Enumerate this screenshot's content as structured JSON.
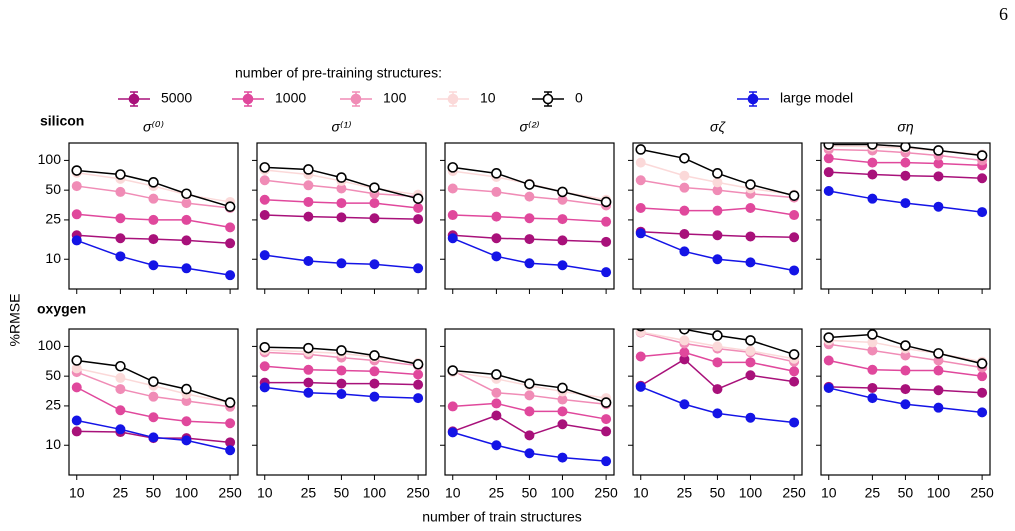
{
  "page_number": "6",
  "legend_title": "number of pre-training structures:",
  "xlabel": "number of train structures",
  "ylabel": "%RMSE",
  "chart_data": [
    {
      "type": "line",
      "row_label": "silicon",
      "title": "σ⁽⁰⁾",
      "log_x": true,
      "log_y": true,
      "xlim": [
        8.5,
        295
      ],
      "ylim": [
        5,
        150
      ],
      "xticks": [
        10,
        25,
        50,
        100,
        250
      ],
      "yticks": [
        10,
        25,
        50,
        100
      ],
      "x": [
        10,
        25,
        50,
        100,
        250
      ],
      "series": [
        {
          "name": "5000",
          "color": "#a8117a",
          "values": [
            17.5,
            16.3,
            16,
            15.5,
            14.5
          ]
        },
        {
          "name": "1000",
          "color": "#e0489c",
          "values": [
            28.5,
            26,
            25,
            25,
            21
          ]
        },
        {
          "name": "100",
          "color": "#f08cb6",
          "values": [
            55,
            48,
            41,
            37,
            33
          ]
        },
        {
          "name": "10",
          "color": "#fbd9d9",
          "values": [
            75,
            65,
            55,
            45,
            38
          ]
        },
        {
          "name": "0",
          "color": "#000000",
          "marker_face": "#ffffff",
          "values": [
            79,
            72,
            60,
            46,
            34
          ]
        },
        {
          "name": "large model",
          "color": "#1414e6",
          "values": [
            15.5,
            10.7,
            8.7,
            8.1,
            6.9
          ]
        }
      ]
    },
    {
      "type": "line",
      "title": "σ⁽¹⁾",
      "log_x": true,
      "log_y": true,
      "xlim": [
        8.5,
        295
      ],
      "ylim": [
        5,
        150
      ],
      "xticks": [
        10,
        25,
        50,
        100,
        250
      ],
      "yticks": [
        10,
        25,
        50,
        100
      ],
      "x": [
        10,
        25,
        50,
        100,
        250
      ],
      "series": [
        {
          "name": "5000",
          "color": "#a8117a",
          "values": [
            28,
            27,
            26.5,
            26,
            25.5
          ]
        },
        {
          "name": "1000",
          "color": "#e0489c",
          "values": [
            40,
            38,
            37,
            37,
            33
          ]
        },
        {
          "name": "100",
          "color": "#f08cb6",
          "values": [
            63,
            56,
            52,
            46,
            43
          ]
        },
        {
          "name": "10",
          "color": "#fbd9d9",
          "values": [
            80,
            72,
            62,
            52,
            45
          ]
        },
        {
          "name": "0",
          "color": "#000000",
          "marker_face": "#ffffff",
          "values": [
            85,
            81,
            67,
            53,
            41
          ]
        },
        {
          "name": "large model",
          "color": "#1414e6",
          "values": [
            11,
            9.6,
            9.1,
            8.9,
            8.1
          ]
        }
      ]
    },
    {
      "type": "line",
      "title": "σ⁽²⁾",
      "log_x": true,
      "log_y": true,
      "xlim": [
        8.5,
        295
      ],
      "ylim": [
        5,
        150
      ],
      "xticks": [
        10,
        25,
        50,
        100,
        250
      ],
      "yticks": [
        10,
        25,
        50,
        100
      ],
      "x": [
        10,
        25,
        50,
        100,
        250
      ],
      "series": [
        {
          "name": "5000",
          "color": "#a8117a",
          "values": [
            17.5,
            16.3,
            16,
            15.5,
            15
          ]
        },
        {
          "name": "1000",
          "color": "#e0489c",
          "values": [
            28,
            27,
            26,
            25.5,
            24
          ]
        },
        {
          "name": "100",
          "color": "#f08cb6",
          "values": [
            52,
            48,
            43,
            40,
            35
          ]
        },
        {
          "name": "10",
          "color": "#fbd9d9",
          "values": [
            78,
            68,
            58,
            48,
            40
          ]
        },
        {
          "name": "0",
          "color": "#000000",
          "marker_face": "#ffffff",
          "values": [
            85,
            74,
            57,
            48,
            38
          ]
        },
        {
          "name": "large model",
          "color": "#1414e6",
          "values": [
            16.3,
            10.7,
            9.1,
            8.7,
            7.4
          ]
        }
      ]
    },
    {
      "type": "line",
      "title": "σζ",
      "log_x": true,
      "log_y": true,
      "xlim": [
        8.5,
        295
      ],
      "ylim": [
        5,
        150
      ],
      "xticks": [
        10,
        25,
        50,
        100,
        250
      ],
      "yticks": [
        10,
        25,
        50,
        100
      ],
      "x": [
        10,
        25,
        50,
        100,
        250
      ],
      "series": [
        {
          "name": "5000",
          "color": "#a8117a",
          "values": [
            19,
            18,
            17.5,
            17,
            16.7
          ]
        },
        {
          "name": "1000",
          "color": "#e0489c",
          "values": [
            33,
            31,
            31,
            33,
            28
          ]
        },
        {
          "name": "100",
          "color": "#f08cb6",
          "values": [
            63,
            53,
            50,
            46,
            42
          ]
        },
        {
          "name": "10",
          "color": "#fbd9d9",
          "values": [
            95,
            70,
            60,
            52,
            45
          ]
        },
        {
          "name": "0",
          "color": "#000000",
          "marker_face": "#ffffff",
          "values": [
            129,
            105,
            74,
            57,
            44
          ]
        },
        {
          "name": "large model",
          "color": "#1414e6",
          "values": [
            18.3,
            12,
            10,
            9.3,
            7.7
          ]
        }
      ]
    },
    {
      "type": "line",
      "title": "ση",
      "log_x": true,
      "log_y": true,
      "xlim": [
        8.5,
        295
      ],
      "ylim": [
        5,
        150
      ],
      "xticks": [
        10,
        25,
        50,
        100,
        250
      ],
      "yticks": [
        10,
        25,
        50,
        100
      ],
      "x": [
        10,
        25,
        50,
        100,
        250
      ],
      "series": [
        {
          "name": "5000",
          "color": "#a8117a",
          "values": [
            76,
            72,
            70,
            69,
            66
          ]
        },
        {
          "name": "1000",
          "color": "#e0489c",
          "values": [
            105,
            95,
            95,
            93,
            89
          ]
        },
        {
          "name": "100",
          "color": "#f08cb6",
          "values": [
            129,
            126,
            120,
            112,
            100
          ]
        },
        {
          "name": "10",
          "color": "#fbd9d9",
          "values": [
            140,
            138,
            134,
            125,
            115
          ]
        },
        {
          "name": "0",
          "color": "#000000",
          "marker_face": "#ffffff",
          "values": [
            145,
            145,
            138,
            126,
            112
          ]
        },
        {
          "name": "large model",
          "color": "#1414e6",
          "values": [
            49,
            41,
            37,
            34,
            30
          ]
        }
      ]
    },
    {
      "type": "line",
      "row_label": "oxygen",
      "log_x": true,
      "log_y": true,
      "xlim": [
        8.5,
        295
      ],
      "ylim": [
        5,
        150
      ],
      "xticks": [
        10,
        25,
        50,
        100,
        250
      ],
      "yticks": [
        10,
        25,
        50,
        100
      ],
      "x": [
        10,
        25,
        50,
        100,
        250
      ],
      "series": [
        {
          "name": "5000",
          "color": "#a8117a",
          "values": [
            13.8,
            13.6,
            11.8,
            11.8,
            10.7
          ]
        },
        {
          "name": "1000",
          "color": "#e0489c",
          "values": [
            38.5,
            22.6,
            19.2,
            17.5,
            16.7
          ]
        },
        {
          "name": "100",
          "color": "#f08cb6",
          "values": [
            55,
            37,
            31,
            28,
            24.5
          ]
        },
        {
          "name": "10",
          "color": "#fbd9d9",
          "values": [
            60,
            48,
            40,
            33,
            27
          ]
        },
        {
          "name": "0",
          "color": "#000000",
          "marker_face": "#ffffff",
          "values": [
            72,
            63,
            44,
            37,
            27
          ]
        },
        {
          "name": "large model",
          "color": "#1414e6",
          "values": [
            17.8,
            14.5,
            12,
            11.2,
            8.9
          ]
        }
      ]
    },
    {
      "type": "line",
      "log_x": true,
      "log_y": true,
      "xlim": [
        8.5,
        295
      ],
      "ylim": [
        5,
        150
      ],
      "xticks": [
        10,
        25,
        50,
        100,
        250
      ],
      "yticks": [
        10,
        25,
        50,
        100
      ],
      "x": [
        10,
        25,
        50,
        100,
        250
      ],
      "series": [
        {
          "name": "5000",
          "color": "#a8117a",
          "values": [
            43,
            43,
            42,
            42,
            41
          ]
        },
        {
          "name": "1000",
          "color": "#e0489c",
          "values": [
            63,
            58,
            57,
            56,
            52
          ]
        },
        {
          "name": "100",
          "color": "#f08cb6",
          "values": [
            87,
            83,
            77,
            72,
            64
          ]
        },
        {
          "name": "10",
          "color": "#fbd9d9",
          "values": [
            92,
            88,
            85,
            78,
            68
          ]
        },
        {
          "name": "0",
          "color": "#000000",
          "marker_face": "#ffffff",
          "values": [
            98,
            96,
            91,
            81,
            66
          ]
        },
        {
          "name": "large model",
          "color": "#1414e6",
          "values": [
            38.5,
            34,
            33,
            31,
            30
          ]
        }
      ]
    },
    {
      "type": "line",
      "log_x": true,
      "log_y": true,
      "xlim": [
        8.5,
        295
      ],
      "ylim": [
        5,
        150
      ],
      "xticks": [
        10,
        25,
        50,
        100,
        250
      ],
      "yticks": [
        10,
        25,
        50,
        100
      ],
      "x": [
        10,
        25,
        50,
        100,
        250
      ],
      "series": [
        {
          "name": "5000",
          "color": "#a8117a",
          "values": [
            13.8,
            20,
            12.6,
            16.3,
            13.8
          ]
        },
        {
          "name": "1000",
          "color": "#e0489c",
          "values": [
            24.7,
            26.5,
            22,
            22,
            18.4
          ]
        },
        {
          "name": "100",
          "color": "#f08cb6",
          "values": [
            57,
            34,
            32,
            29,
            26
          ]
        },
        {
          "name": "10",
          "color": "#fbd9d9",
          "values": [
            55,
            47,
            40,
            35,
            30
          ]
        },
        {
          "name": "0",
          "color": "#000000",
          "marker_face": "#ffffff",
          "values": [
            57,
            52,
            42,
            38,
            27
          ]
        },
        {
          "name": "large model",
          "color": "#1414e6",
          "values": [
            13.5,
            10,
            8.3,
            7.5,
            6.9
          ]
        }
      ]
    },
    {
      "type": "line",
      "log_x": true,
      "log_y": true,
      "xlim": [
        8.5,
        295
      ],
      "ylim": [
        5,
        150
      ],
      "xticks": [
        10,
        25,
        50,
        100,
        250
      ],
      "yticks": [
        10,
        25,
        50,
        100
      ],
      "x": [
        10,
        25,
        50,
        100,
        250
      ],
      "series": [
        {
          "name": "5000",
          "color": "#a8117a",
          "values": [
            40,
            74,
            37,
            51,
            44
          ]
        },
        {
          "name": "1000",
          "color": "#e0489c",
          "values": [
            79,
            87,
            69,
            69,
            56
          ]
        },
        {
          "name": "100",
          "color": "#f08cb6",
          "values": [
            138,
            107,
            95,
            87,
            70
          ]
        },
        {
          "name": "10",
          "color": "#fbd9d9",
          "values": [
            140,
            115,
            100,
            90,
            75
          ]
        },
        {
          "name": "0",
          "color": "#000000",
          "marker_face": "#ffffff",
          "values": [
            160,
            149,
            129,
            115,
            83
          ]
        },
        {
          "name": "large model",
          "color": "#1414e6",
          "values": [
            39,
            26,
            21,
            19,
            17
          ]
        }
      ]
    },
    {
      "type": "line",
      "log_x": true,
      "log_y": true,
      "xlim": [
        8.5,
        295
      ],
      "ylim": [
        5,
        150
      ],
      "xticks": [
        10,
        25,
        50,
        100,
        250
      ],
      "yticks": [
        10,
        25,
        50,
        100
      ],
      "x": [
        10,
        25,
        50,
        100,
        250
      ],
      "series": [
        {
          "name": "5000",
          "color": "#a8117a",
          "values": [
            39,
            38,
            37,
            36,
            34
          ]
        },
        {
          "name": "1000",
          "color": "#e0489c",
          "values": [
            72,
            58,
            57,
            57,
            50
          ]
        },
        {
          "name": "100",
          "color": "#f08cb6",
          "values": [
            105,
            91,
            81,
            72,
            61
          ]
        },
        {
          "name": "10",
          "color": "#fbd9d9",
          "values": [
            115,
            110,
            95,
            85,
            70
          ]
        },
        {
          "name": "0",
          "color": "#000000",
          "marker_face": "#ffffff",
          "values": [
            123,
            132,
            102,
            85,
            67
          ]
        },
        {
          "name": "large model",
          "color": "#1414e6",
          "values": [
            38,
            30,
            26,
            24,
            21.5
          ]
        }
      ]
    }
  ]
}
